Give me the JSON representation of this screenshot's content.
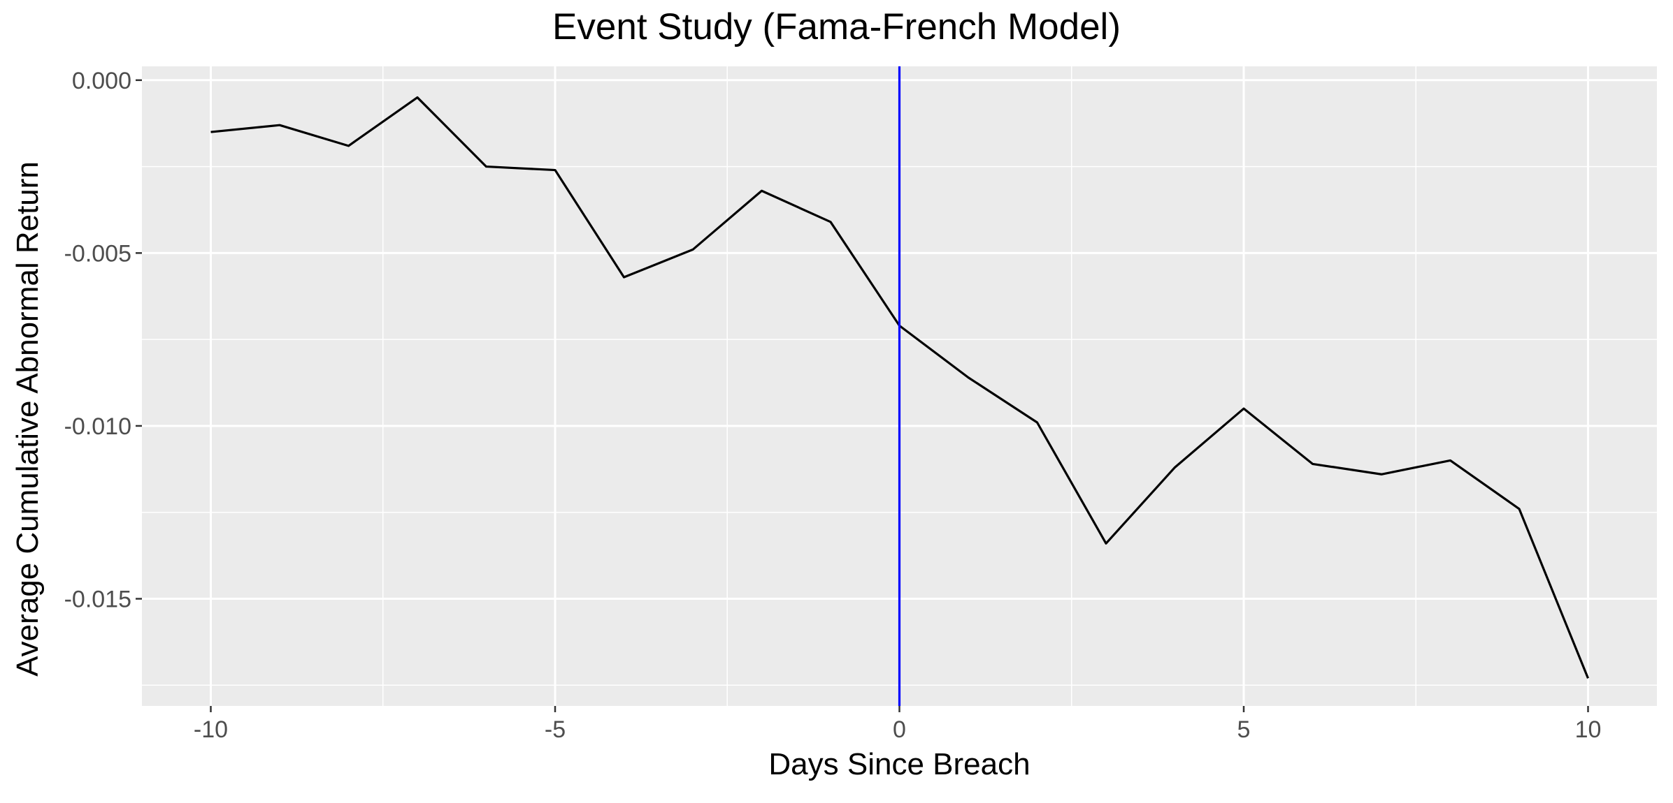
{
  "chart_data": {
    "type": "line",
    "title": "Event Study (Fama-French Model)",
    "xlabel": "Days Since Breach",
    "ylabel": "Average Cumulative Abnormal Return",
    "xlim": [
      -11,
      11
    ],
    "ylim": [
      -0.0181,
      0.0004
    ],
    "x_ticks": [
      -10,
      -5,
      0,
      5,
      10
    ],
    "x_tick_labels": [
      "-10",
      "-5",
      "0",
      "5",
      "10"
    ],
    "y_ticks": [
      0.0,
      -0.005,
      -0.01,
      -0.015
    ],
    "y_tick_labels": [
      "0.000",
      "-0.005",
      "-0.010",
      "-0.015"
    ],
    "grid": true,
    "background": "#ebebeb",
    "line_color": "#000000",
    "event_line": {
      "x": 0,
      "color": "#0000ff"
    },
    "x": [
      -10,
      -9,
      -8,
      -7,
      -6,
      -5,
      -4,
      -3,
      -2,
      -1,
      0,
      1,
      2,
      3,
      4,
      5,
      6,
      7,
      8,
      9,
      10
    ],
    "y": [
      -0.0015,
      -0.0013,
      -0.0019,
      -0.0005,
      -0.0025,
      -0.0026,
      -0.0057,
      -0.0049,
      -0.0032,
      -0.0041,
      -0.0071,
      -0.0086,
      -0.0099,
      -0.0134,
      -0.0112,
      -0.0095,
      -0.0111,
      -0.0114,
      -0.011,
      -0.0124,
      -0.0173
    ]
  }
}
